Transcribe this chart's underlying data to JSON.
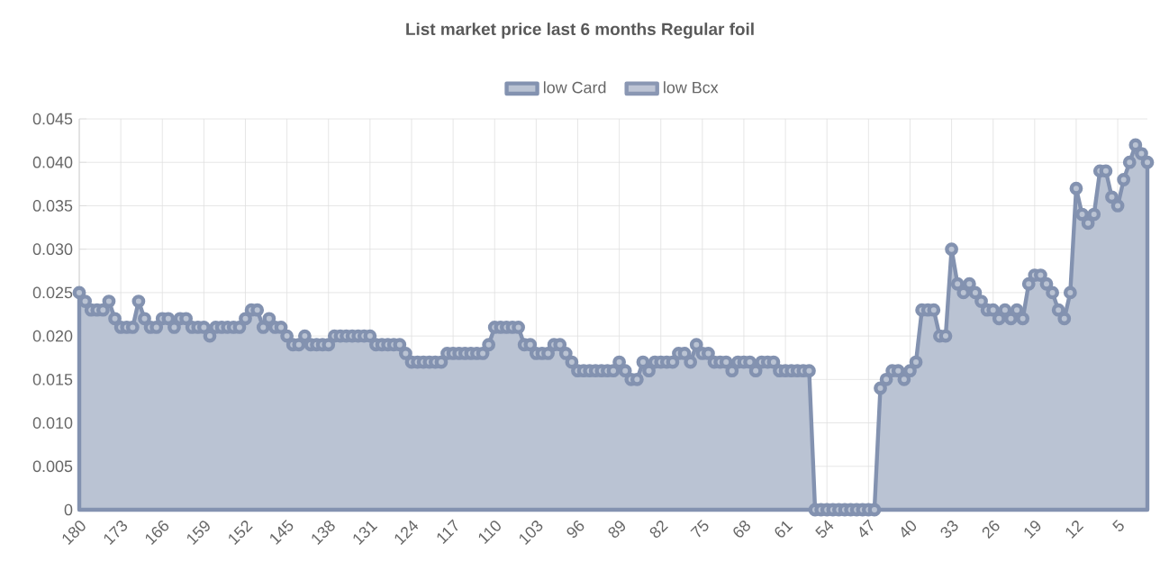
{
  "chart_data": {
    "type": "area",
    "title": "List market price last 6 months Regular foil",
    "categories": [
      "180",
      null,
      null,
      null,
      null,
      null,
      null,
      "173",
      null,
      null,
      null,
      null,
      null,
      null,
      "166",
      null,
      null,
      null,
      null,
      null,
      null,
      "159",
      null,
      null,
      null,
      null,
      null,
      null,
      "152",
      null,
      null,
      null,
      null,
      null,
      null,
      "145",
      null,
      null,
      null,
      null,
      null,
      null,
      "138",
      null,
      null,
      null,
      null,
      null,
      null,
      "131",
      null,
      null,
      null,
      null,
      null,
      null,
      "124",
      null,
      null,
      null,
      null,
      null,
      null,
      "117",
      null,
      null,
      null,
      null,
      null,
      null,
      "110",
      null,
      null,
      null,
      null,
      null,
      null,
      "103",
      null,
      null,
      null,
      null,
      null,
      null,
      "96",
      null,
      null,
      null,
      null,
      null,
      null,
      "89",
      null,
      null,
      null,
      null,
      null,
      null,
      "82",
      null,
      null,
      null,
      null,
      null,
      null,
      "75",
      null,
      null,
      null,
      null,
      null,
      null,
      "68",
      null,
      null,
      null,
      null,
      null,
      null,
      "61",
      null,
      null,
      null,
      null,
      null,
      null,
      "54",
      null,
      null,
      null,
      null,
      null,
      null,
      "47",
      null,
      null,
      null,
      null,
      null,
      null,
      "40",
      null,
      null,
      null,
      null,
      null,
      null,
      "33",
      null,
      null,
      null,
      null,
      null,
      null,
      "26",
      null,
      null,
      null,
      null,
      null,
      null,
      "19",
      null,
      null,
      null,
      null,
      null,
      null,
      "12",
      null,
      null,
      null,
      null,
      null,
      null,
      "5",
      null,
      null,
      null,
      null,
      null
    ],
    "series": [
      {
        "name": "low Card",
        "color": "#8392b0",
        "values": [
          0.025,
          0.024,
          0.023,
          0.023,
          0.023,
          0.024,
          0.022,
          0.021,
          0.021,
          0.021,
          0.024,
          0.022,
          0.021,
          0.021,
          0.022,
          0.022,
          0.021,
          0.022,
          0.022,
          0.021,
          0.021,
          0.021,
          0.02,
          0.021,
          0.021,
          0.021,
          0.021,
          0.021,
          0.022,
          0.023,
          0.023,
          0.021,
          0.022,
          0.021,
          0.021,
          0.02,
          0.019,
          0.019,
          0.02,
          0.019,
          0.019,
          0.019,
          0.019,
          0.02,
          0.02,
          0.02,
          0.02,
          0.02,
          0.02,
          0.02,
          0.019,
          0.019,
          0.019,
          0.019,
          0.019,
          0.018,
          0.017,
          0.017,
          0.017,
          0.017,
          0.017,
          0.017,
          0.018,
          0.018,
          0.018,
          0.018,
          0.018,
          0.018,
          0.018,
          0.019,
          0.021,
          0.021,
          0.021,
          0.021,
          0.021,
          0.019,
          0.019,
          0.018,
          0.018,
          0.018,
          0.019,
          0.019,
          0.018,
          0.017,
          0.016,
          0.016,
          0.016,
          0.016,
          0.016,
          0.016,
          0.016,
          0.017,
          0.016,
          0.015,
          0.015,
          0.017,
          0.016,
          0.017,
          0.017,
          0.017,
          0.017,
          0.018,
          0.018,
          0.017,
          0.019,
          0.018,
          0.018,
          0.017,
          0.017,
          0.017,
          0.016,
          0.017,
          0.017,
          0.017,
          0.016,
          0.017,
          0.017,
          0.017,
          0.016,
          0.016,
          0.016,
          0.016,
          0.016,
          0.016,
          0,
          0,
          0,
          0,
          0,
          0,
          0,
          0,
          0,
          0,
          0,
          0.014,
          0.015,
          0.016,
          0.016,
          0.015,
          0.016,
          0.017,
          0.023,
          0.023,
          0.023,
          0.02,
          0.02,
          0.03,
          0.026,
          0.025,
          0.026,
          0.025,
          0.024,
          0.023,
          0.023,
          0.022,
          0.023,
          0.022,
          0.023,
          0.022,
          0.026,
          0.027,
          0.027,
          0.026,
          0.025,
          0.023,
          0.022,
          0.025,
          0.037,
          0.034,
          0.033,
          0.034,
          0.039,
          0.039,
          0.036,
          0.035,
          0.038,
          0.04,
          0.042,
          0.041,
          0.04
        ]
      },
      {
        "name": "low Bcx",
        "color": "#8a97b3",
        "values": [
          null,
          null,
          null,
          null,
          null,
          null,
          null,
          null,
          null,
          null,
          null,
          null,
          null,
          null,
          null,
          null,
          null,
          null,
          null,
          null,
          null,
          null,
          null,
          null,
          null,
          null,
          null,
          null,
          null,
          null,
          null,
          null,
          null,
          null,
          null,
          null,
          null,
          null,
          null,
          null,
          null,
          null,
          null,
          null,
          null,
          null,
          null,
          null,
          null,
          null,
          null,
          null,
          null,
          null,
          null,
          null,
          null,
          null,
          null,
          null,
          null,
          null,
          null,
          null,
          null,
          null,
          null,
          null,
          null,
          null,
          null,
          null,
          null,
          null,
          null,
          null,
          null,
          null,
          null,
          null,
          null,
          null,
          null,
          null,
          null,
          null,
          null,
          null,
          null,
          null,
          null,
          null,
          null,
          null,
          null,
          null,
          null,
          null,
          null,
          null,
          null,
          null,
          null,
          null,
          null,
          null,
          null,
          null,
          null,
          null,
          null,
          null,
          null,
          null,
          null,
          null,
          null,
          null,
          null,
          null,
          null,
          null,
          null,
          null,
          null,
          null,
          null,
          null,
          null,
          null,
          null,
          null,
          null,
          null,
          null,
          null,
          null,
          null,
          null,
          null,
          null,
          null,
          null,
          null,
          null,
          null,
          null,
          null,
          null,
          null,
          null,
          null,
          null,
          null,
          null,
          null,
          null,
          null,
          null,
          null,
          null,
          null,
          null,
          null,
          null,
          null,
          null,
          null,
          null,
          null,
          null,
          null,
          null,
          null,
          null,
          null,
          null,
          null,
          null,
          null,
          null
        ]
      }
    ],
    "ylim": [
      0,
      0.045
    ],
    "yticks": [
      {
        "value": 0,
        "label": "0"
      },
      {
        "value": 0.005,
        "label": "0.005"
      },
      {
        "value": 0.01,
        "label": "0.010"
      },
      {
        "value": 0.015,
        "label": "0.015"
      },
      {
        "value": 0.02,
        "label": "0.020"
      },
      {
        "value": 0.025,
        "label": "0.025"
      },
      {
        "value": 0.03,
        "label": "0.030"
      },
      {
        "value": 0.035,
        "label": "0.035"
      },
      {
        "value": 0.04,
        "label": "0.040"
      },
      {
        "value": 0.045,
        "label": "0.045"
      }
    ],
    "grid": true,
    "legend": "top",
    "marker": "circle"
  }
}
